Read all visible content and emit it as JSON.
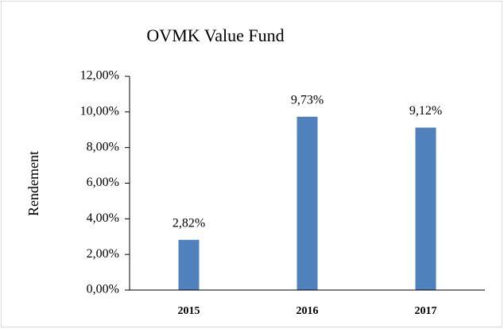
{
  "chart_data": {
    "type": "bar",
    "title": "OVMK Value Fund",
    "y_label": "Rendement",
    "categories": [
      "2015",
      "2016",
      "2017"
    ],
    "values": [
      2.82,
      9.73,
      9.12
    ],
    "value_labels": [
      "2,82%",
      "9,73%",
      "9,12%"
    ],
    "color": "#4f81bd",
    "ylim": [
      0,
      12
    ],
    "yticks": [
      {
        "value": 0,
        "label": "0,00%"
      },
      {
        "value": 2,
        "label": "2,00%"
      },
      {
        "value": 4,
        "label": "4,00%"
      },
      {
        "value": 6,
        "label": "6,00%"
      },
      {
        "value": 8,
        "label": "8,00%"
      },
      {
        "value": 10,
        "label": "10,00%"
      },
      {
        "value": 12,
        "label": "12,00%"
      }
    ]
  }
}
